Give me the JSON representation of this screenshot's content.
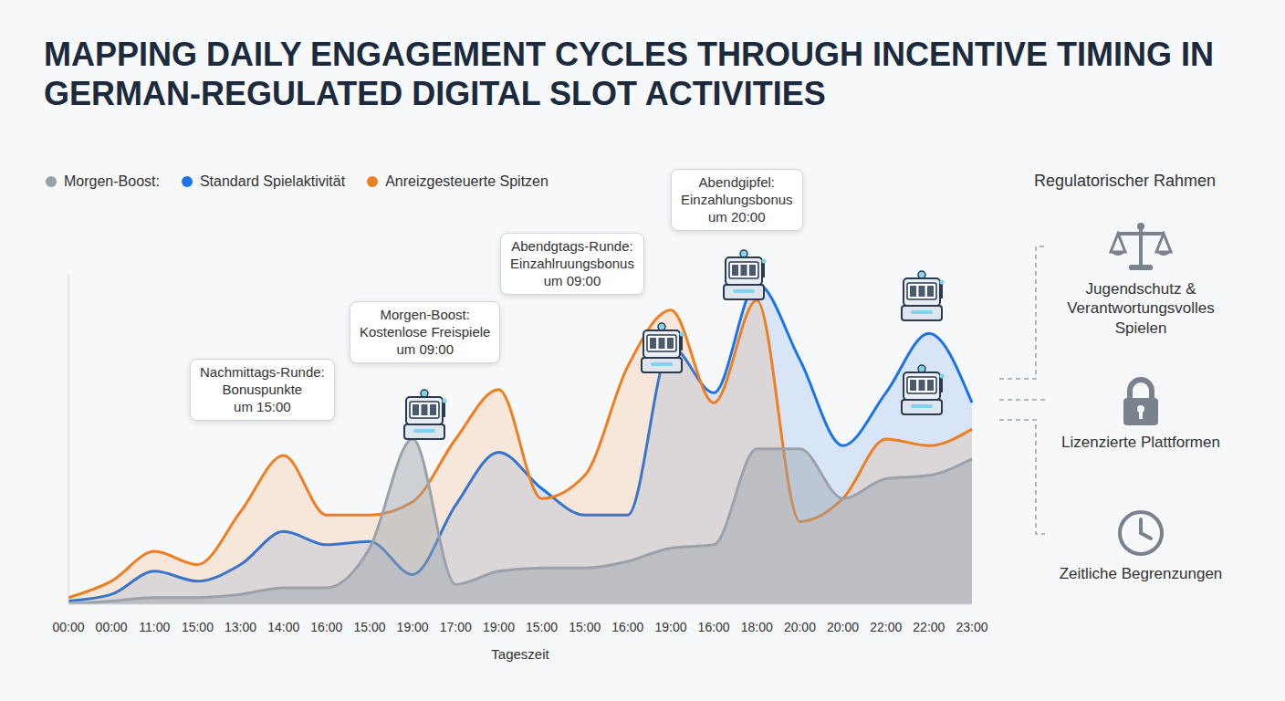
{
  "chart_data": {
    "type": "area",
    "title": "MAPPING DAILY ENGAGEMENT CYCLES THROUGH INCENTIVE TIMING IN GERMAN-REGULATED DIGITAL SLOT ACTIVITIES",
    "x_label": "Tageszeit",
    "categories": [
      "00:00",
      "00:00",
      "11:00",
      "15:00",
      "13:00",
      "14:00",
      "16:00",
      "15:00",
      "19:00",
      "17:00",
      "19:00",
      "15:00",
      "15:00",
      "16:00",
      "19:00",
      "16:00",
      "18:00",
      "20:00",
      "20:00",
      "22:00",
      "22:00",
      "23:00"
    ],
    "series": [
      {
        "name": "Morgen-Boost:",
        "color": "#9aa1ab",
        "values": [
          0,
          1,
          2,
          2,
          3,
          5,
          5,
          17,
          50,
          6,
          10,
          11,
          11,
          13,
          17,
          18,
          47,
          47,
          32,
          38,
          39,
          44
        ]
      },
      {
        "name": "Standard Spielaktivität",
        "color": "#1a73e8",
        "values": [
          1,
          3,
          10,
          7,
          12,
          22,
          18,
          19,
          9,
          30,
          46,
          35,
          27,
          27,
          78,
          64,
          97,
          74,
          48,
          64,
          82,
          61
        ]
      },
      {
        "name": "Anreizgesteuerte Spitzen",
        "color": "#f07d1e",
        "values": [
          2,
          7,
          16,
          12,
          28,
          45,
          27,
          27,
          31,
          50,
          65,
          32,
          39,
          72,
          89,
          61,
          92,
          25,
          32,
          50,
          48,
          53
        ]
      }
    ],
    "ylim": [
      0,
      100
    ],
    "tick_labels": "x",
    "grid": false,
    "legend": "top-left",
    "annotations": [
      {
        "lines": [
          "Nachmittags-Runde:",
          "Bonuspunkte",
          "um 15:00"
        ]
      },
      {
        "lines": [
          "Morgen-Boost:",
          "Kostenlose Freispiele",
          "um 09:00"
        ]
      },
      {
        "lines": [
          "Abendgtags-Runde:",
          "Einzahlruungsbonus",
          "um 09:00"
        ]
      },
      {
        "lines": [
          "Abendgipfel:",
          "Einzahlungsbonus",
          "um 20:00"
        ]
      }
    ]
  },
  "panel": {
    "title": "Regulatorischer Rahmen",
    "items": [
      "Jugendschutz & Verantwortungsvolles Spielen",
      "Lizenzierte Plattformen",
      "Zeitliche Begrenzungen"
    ]
  }
}
